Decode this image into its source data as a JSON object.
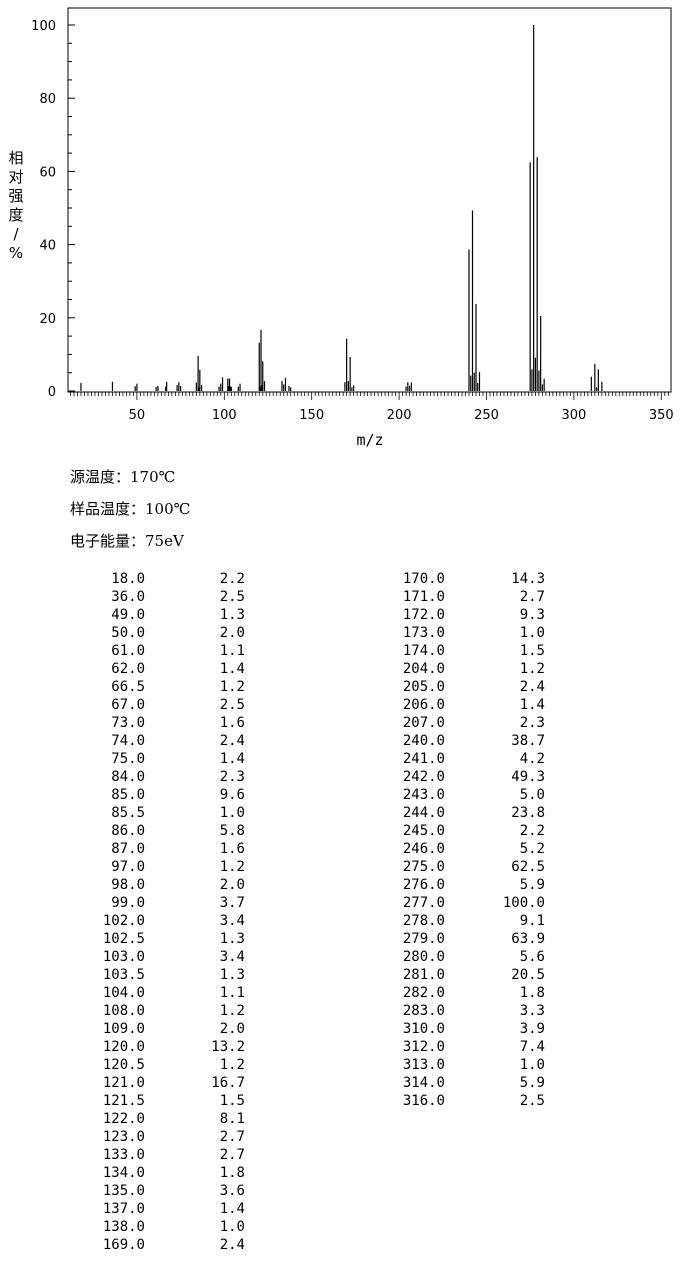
{
  "chart_data": {
    "type": "bar",
    "xlabel": "m/z",
    "ylabel": "相对强度/%",
    "xlim": [
      10,
      355
    ],
    "ylim": [
      0,
      100
    ],
    "x_ticks": [
      "50",
      "100",
      "150",
      "200",
      "250",
      "300",
      "350"
    ],
    "y_ticks": [
      "0",
      "20",
      "40",
      "60",
      "80",
      "100"
    ],
    "grid": false,
    "series": [
      {
        "peaks": [
          [
            18.0,
            2.2
          ],
          [
            36.0,
            2.5
          ],
          [
            49.0,
            1.3
          ],
          [
            50.0,
            2.0
          ],
          [
            61.0,
            1.1
          ],
          [
            62.0,
            1.4
          ],
          [
            66.5,
            1.2
          ],
          [
            67.0,
            2.5
          ],
          [
            73.0,
            1.6
          ],
          [
            74.0,
            2.4
          ],
          [
            75.0,
            1.4
          ],
          [
            84.0,
            2.3
          ],
          [
            85.0,
            9.6
          ],
          [
            85.5,
            1.0
          ],
          [
            86.0,
            5.8
          ],
          [
            87.0,
            1.6
          ],
          [
            97.0,
            1.2
          ],
          [
            98.0,
            2.0
          ],
          [
            99.0,
            3.7
          ],
          [
            102.0,
            3.4
          ],
          [
            102.5,
            1.3
          ],
          [
            103.0,
            3.4
          ],
          [
            103.5,
            1.3
          ],
          [
            104.0,
            1.1
          ],
          [
            108.0,
            1.2
          ],
          [
            109.0,
            2.0
          ],
          [
            120.0,
            13.2
          ],
          [
            120.5,
            1.2
          ],
          [
            121.0,
            16.7
          ],
          [
            121.5,
            1.5
          ],
          [
            122.0,
            8.1
          ],
          [
            123.0,
            2.7
          ],
          [
            133.0,
            2.7
          ],
          [
            134.0,
            1.8
          ],
          [
            135.0,
            3.6
          ],
          [
            137.0,
            1.4
          ],
          [
            138.0,
            1.0
          ],
          [
            169.0,
            2.4
          ],
          [
            170.0,
            14.3
          ],
          [
            171.0,
            2.7
          ],
          [
            172.0,
            9.3
          ],
          [
            173.0,
            1.0
          ],
          [
            174.0,
            1.5
          ],
          [
            204.0,
            1.2
          ],
          [
            205.0,
            2.4
          ],
          [
            206.0,
            1.4
          ],
          [
            207.0,
            2.3
          ],
          [
            240.0,
            38.7
          ],
          [
            241.0,
            4.2
          ],
          [
            242.0,
            49.3
          ],
          [
            243.0,
            5.0
          ],
          [
            244.0,
            23.8
          ],
          [
            245.0,
            2.2
          ],
          [
            246.0,
            5.2
          ],
          [
            275.0,
            62.5
          ],
          [
            276.0,
            5.9
          ],
          [
            277.0,
            100.0
          ],
          [
            278.0,
            9.1
          ],
          [
            279.0,
            63.9
          ],
          [
            280.0,
            5.6
          ],
          [
            281.0,
            20.5
          ],
          [
            282.0,
            1.8
          ],
          [
            283.0,
            3.3
          ],
          [
            310.0,
            3.9
          ],
          [
            312.0,
            7.4
          ],
          [
            313.0,
            1.0
          ],
          [
            314.0,
            5.9
          ],
          [
            316.0,
            2.5
          ]
        ]
      }
    ]
  },
  "conditions": {
    "source_temp": "源温度：170℃",
    "sample_temp": "样品温度：100℃",
    "electron_energy": "电子能量：75eV"
  },
  "table": {
    "left": [
      [
        "18.0",
        "2.2"
      ],
      [
        "36.0",
        "2.5"
      ],
      [
        "49.0",
        "1.3"
      ],
      [
        "50.0",
        "2.0"
      ],
      [
        "61.0",
        "1.1"
      ],
      [
        "62.0",
        "1.4"
      ],
      [
        "66.5",
        "1.2"
      ],
      [
        "67.0",
        "2.5"
      ],
      [
        "73.0",
        "1.6"
      ],
      [
        "74.0",
        "2.4"
      ],
      [
        "75.0",
        "1.4"
      ],
      [
        "84.0",
        "2.3"
      ],
      [
        "85.0",
        "9.6"
      ],
      [
        "85.5",
        "1.0"
      ],
      [
        "86.0",
        "5.8"
      ],
      [
        "87.0",
        "1.6"
      ],
      [
        "97.0",
        "1.2"
      ],
      [
        "98.0",
        "2.0"
      ],
      [
        "99.0",
        "3.7"
      ],
      [
        "102.0",
        "3.4"
      ],
      [
        "102.5",
        "1.3"
      ],
      [
        "103.0",
        "3.4"
      ],
      [
        "103.5",
        "1.3"
      ],
      [
        "104.0",
        "1.1"
      ],
      [
        "108.0",
        "1.2"
      ],
      [
        "109.0",
        "2.0"
      ],
      [
        "120.0",
        "13.2"
      ],
      [
        "120.5",
        "1.2"
      ],
      [
        "121.0",
        "16.7"
      ],
      [
        "121.5",
        "1.5"
      ],
      [
        "122.0",
        "8.1"
      ],
      [
        "123.0",
        "2.7"
      ],
      [
        "133.0",
        "2.7"
      ],
      [
        "134.0",
        "1.8"
      ],
      [
        "135.0",
        "3.6"
      ],
      [
        "137.0",
        "1.4"
      ],
      [
        "138.0",
        "1.0"
      ],
      [
        "169.0",
        "2.4"
      ]
    ],
    "right": [
      [
        "170.0",
        "14.3"
      ],
      [
        "171.0",
        "2.7"
      ],
      [
        "172.0",
        "9.3"
      ],
      [
        "173.0",
        "1.0"
      ],
      [
        "174.0",
        "1.5"
      ],
      [
        "204.0",
        "1.2"
      ],
      [
        "205.0",
        "2.4"
      ],
      [
        "206.0",
        "1.4"
      ],
      [
        "207.0",
        "2.3"
      ],
      [
        "240.0",
        "38.7"
      ],
      [
        "241.0",
        "4.2"
      ],
      [
        "242.0",
        "49.3"
      ],
      [
        "243.0",
        "5.0"
      ],
      [
        "244.0",
        "23.8"
      ],
      [
        "245.0",
        "2.2"
      ],
      [
        "246.0",
        "5.2"
      ],
      [
        "275.0",
        "62.5"
      ],
      [
        "276.0",
        "5.9"
      ],
      [
        "277.0",
        "100.0"
      ],
      [
        "278.0",
        "9.1"
      ],
      [
        "279.0",
        "63.9"
      ],
      [
        "280.0",
        "5.6"
      ],
      [
        "281.0",
        "20.5"
      ],
      [
        "282.0",
        "1.8"
      ],
      [
        "283.0",
        "3.3"
      ],
      [
        "310.0",
        "3.9"
      ],
      [
        "312.0",
        "7.4"
      ],
      [
        "313.0",
        "1.0"
      ],
      [
        "314.0",
        "5.9"
      ],
      [
        "316.0",
        "2.5"
      ]
    ]
  }
}
